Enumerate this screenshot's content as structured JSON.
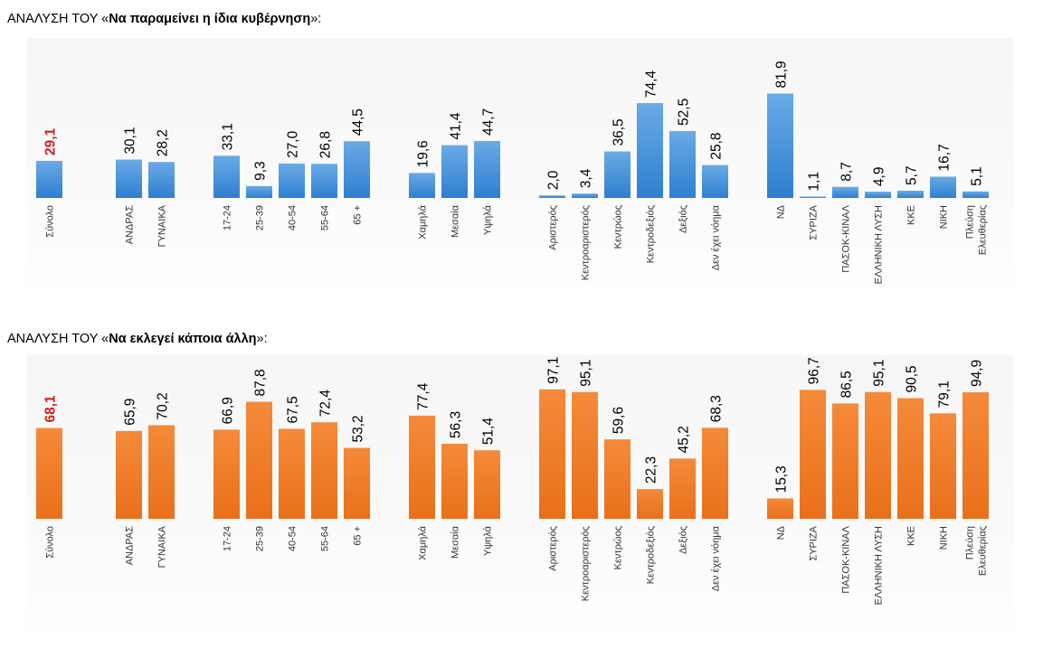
{
  "titles": [
    {
      "prefix": "ΑΝΑΛΥΣΗ ΤΟΥ «",
      "bold": "Να παραμείνει η ίδια κυβέρνηση",
      "suffix": "»:"
    },
    {
      "prefix": "ΑΝΑΛΥΣΗ ΤΟΥ «",
      "bold": "Να εκλεγεί κάποια άλλη",
      "suffix": "»:"
    }
  ],
  "colors": {
    "blue_top": "#6aaae6",
    "blue_bottom": "#2e7fd0",
    "orange_top": "#f48a3a",
    "orange_bottom": "#e9701a",
    "highlight_label": "#d01f1f",
    "label": "#000000",
    "category": "#333333"
  },
  "chart_data": [
    {
      "type": "bar",
      "title": "ΑΝΑΛΥΣΗ ΤΟΥ «Να παραμείνει η ίδια κυβέρνηση»:",
      "color": "blue",
      "highlight_index": 0,
      "groups": [
        {
          "categories": [
            "Σύνολο"
          ],
          "values": [
            29.1
          ],
          "labels": [
            "29,1"
          ]
        },
        {
          "categories": [
            "ΑΝΔΡΑΣ",
            "ΓΥΝΑΙΚΑ"
          ],
          "values": [
            30.1,
            28.2
          ],
          "labels": [
            "30,1",
            "28,2"
          ]
        },
        {
          "categories": [
            "17-24",
            "25-39",
            "40-54",
            "55-64",
            "65 +"
          ],
          "values": [
            33.1,
            9.3,
            27.0,
            26.8,
            44.5
          ],
          "labels": [
            "33,1",
            "9,3",
            "27,0",
            "26,8",
            "44,5"
          ]
        },
        {
          "categories": [
            "Χαμηλά",
            "Μεσαία",
            "Υψηλά"
          ],
          "values": [
            19.6,
            41.4,
            44.7
          ],
          "labels": [
            "19,6",
            "41,4",
            "44,7"
          ]
        },
        {
          "categories": [
            "Αριστερός",
            "Κεντροαριστερός",
            "Κεντρώος",
            "Κεντροδεξιός",
            "Δεξιός",
            "Δεν έχει νόημα"
          ],
          "values": [
            2.0,
            3.4,
            36.5,
            74.4,
            52.5,
            25.8
          ],
          "labels": [
            "2,0",
            "3,4",
            "36,5",
            "74,4",
            "52,5",
            "25,8"
          ]
        },
        {
          "categories": [
            "ΝΔ",
            "ΣΥΡΙΖΑ",
            "ΠΑΣΟΚ-ΚΙΝΑΛ",
            "ΕΛΛΗΝΙΚΗ ΛΥΣΗ",
            "ΚΚΕ",
            "ΝΙΚΗ",
            "Πλεύση Ελευθερίας"
          ],
          "values": [
            81.9,
            1.1,
            8.7,
            4.9,
            5.7,
            16.7,
            5.1
          ],
          "labels": [
            "81,9",
            "1,1",
            "8,7",
            "4,9",
            "5,7",
            "16,7",
            "5,1"
          ]
        }
      ]
    },
    {
      "type": "bar",
      "title": "ΑΝΑΛΥΣΗ ΤΟΥ «Να εκλεγεί κάποια άλλη»:",
      "color": "orange",
      "highlight_index": 0,
      "groups": [
        {
          "categories": [
            "Σύνολο"
          ],
          "values": [
            68.1
          ],
          "labels": [
            "68,1"
          ]
        },
        {
          "categories": [
            "ΑΝΔΡΑΣ",
            "ΓΥΝΑΙΚΑ"
          ],
          "values": [
            65.9,
            70.2
          ],
          "labels": [
            "65,9",
            "70,2"
          ]
        },
        {
          "categories": [
            "17-24",
            "25-39",
            "40-54",
            "55-64",
            "65 +"
          ],
          "values": [
            66.9,
            87.8,
            67.5,
            72.4,
            53.2
          ],
          "labels": [
            "66,9",
            "87,8",
            "67,5",
            "72,4",
            "53,2"
          ]
        },
        {
          "categories": [
            "Χαμηλά",
            "Μεσαία",
            "Υψηλά"
          ],
          "values": [
            77.4,
            56.3,
            51.4
          ],
          "labels": [
            "77,4",
            "56,3",
            "51,4"
          ]
        },
        {
          "categories": [
            "Αριστερός",
            "Κεντροαριστερός",
            "Κεντρώος",
            "Κεντροδεξιός",
            "Δεξιός",
            "Δεν έχει νόημα"
          ],
          "values": [
            97.1,
            95.1,
            59.6,
            22.3,
            45.2,
            68.3
          ],
          "labels": [
            "97,1",
            "95,1",
            "59,6",
            "22,3",
            "45,2",
            "68,3"
          ]
        },
        {
          "categories": [
            "ΝΔ",
            "ΣΥΡΙΖΑ",
            "ΠΑΣΟΚ-ΚΙΝΑΛ",
            "ΕΛΛΗΝΙΚΗ ΛΥΣΗ",
            "ΚΚΕ",
            "ΝΙΚΗ",
            "Πλεύση Ελευθερίας"
          ],
          "values": [
            15.3,
            96.7,
            86.5,
            95.1,
            90.5,
            79.1,
            94.9
          ],
          "labels": [
            "15,3",
            "96,7",
            "86,5",
            "95,1",
            "90,5",
            "79,1",
            "94,9"
          ]
        }
      ]
    }
  ]
}
